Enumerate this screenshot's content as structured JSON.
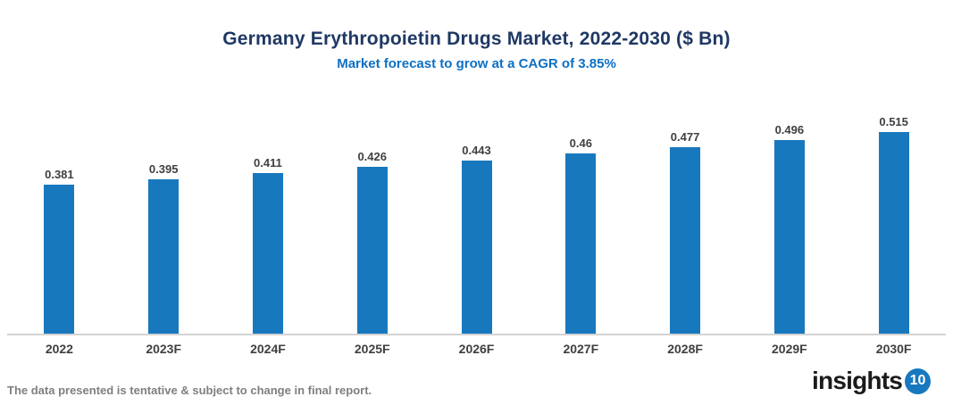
{
  "title": "Germany Erythropoietin Drugs Market, 2022-2030 ($ Bn)",
  "subtitle": "Market forecast to grow at a CAGR of 3.85%",
  "footer": {
    "disclaimer": "The data presented is tentative & subject to change in final report.",
    "logo_text": "insights",
    "logo_badge": "10"
  },
  "colors": {
    "bar": "#1878BE",
    "title": "#1F3864",
    "subtitle": "#0C70C4",
    "label": "#3F3F3F",
    "axis_line": "#D3D3D3",
    "disclaimer": "#7F7F7F",
    "logo_badge_bg": "#1778BE"
  },
  "chart_data": {
    "type": "bar",
    "title": "Germany Erythropoietin Drugs Market, 2022-2030 ($ Bn)",
    "subtitle": "Market forecast to grow at a CAGR of 3.85%",
    "categories": [
      "2022",
      "2023F",
      "2024F",
      "2025F",
      "2026F",
      "2027F",
      "2028F",
      "2029F",
      "2030F"
    ],
    "values": [
      0.381,
      0.395,
      0.411,
      0.426,
      0.443,
      0.46,
      0.477,
      0.496,
      0.515
    ],
    "value_labels": [
      "0.381",
      "0.395",
      "0.411",
      "0.426",
      "0.443",
      "0.46",
      "0.477",
      "0.496",
      "0.515"
    ],
    "xlabel": "",
    "ylabel": "",
    "ylim": [
      0,
      0.55
    ],
    "grid": false,
    "legend": false,
    "bar_color": "#1878BE"
  }
}
